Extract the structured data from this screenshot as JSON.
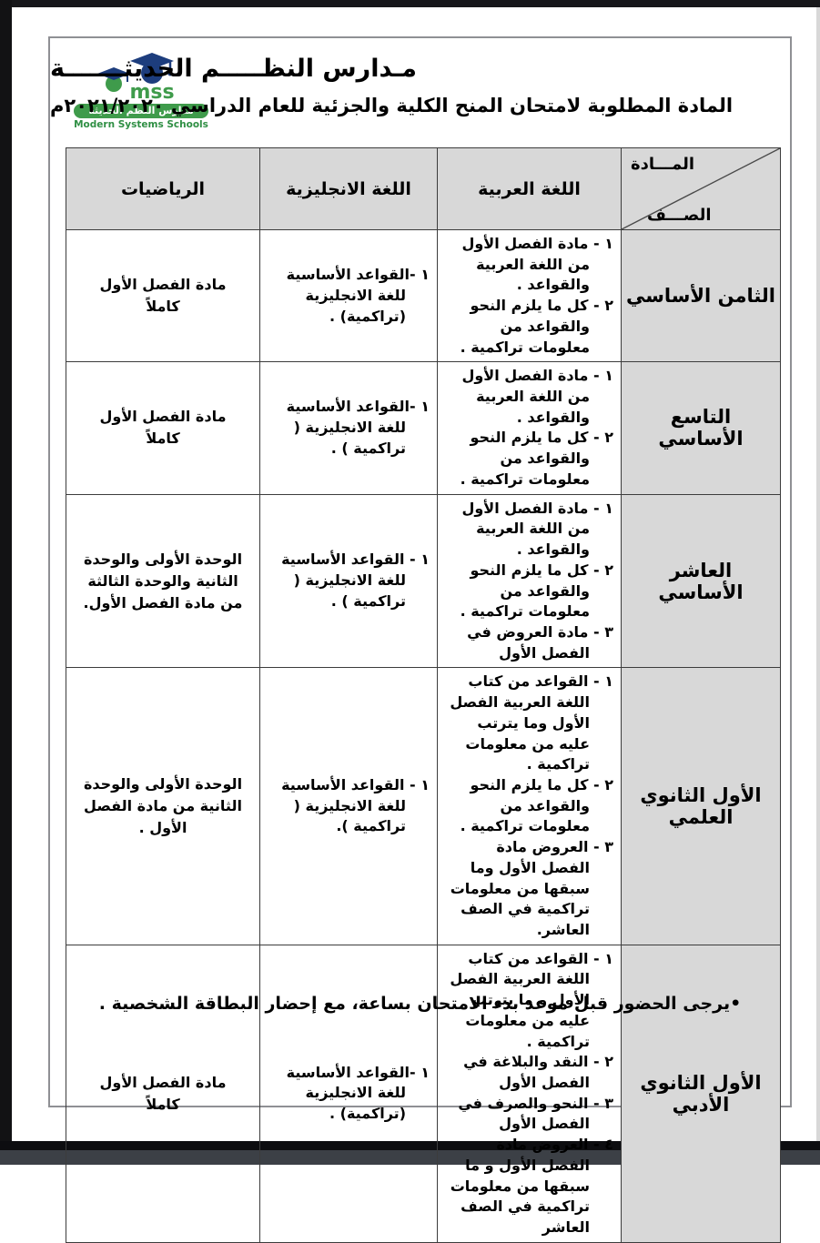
{
  "header": {
    "school_name_ar": "مـدارس النظـــــم الحديثـــــــة",
    "subtitle": "المادة المطلوبة لامتحان المنح الكلية والجزئية للعام الدراسي  ٢٠٢١/٢٠٢٠م",
    "logo": {
      "acronym": "mss",
      "name_ar": "مدارس النظم الحديثة",
      "name_en": "Modern Systems Schools",
      "green": "#3f9b4b",
      "navy": "#1d3d7d"
    }
  },
  "table": {
    "corner": {
      "top_label": "المـــادة",
      "bottom_label": "الصـــف"
    },
    "columns": [
      "اللغة العربية",
      "اللغة الانجليزية",
      "الرياضيات"
    ],
    "rows": [
      {
        "grade": "الثامن الأساسي",
        "arabic": [
          "١ - مادة الفصل الأول من اللغة العربية والقواعد .",
          "٢ - كل ما يلزم النحو والقواعد من معلومات تراكمية ."
        ],
        "english": [
          "١ -القواعد الأساسية للغة الانجليزية (تراكمية) ."
        ],
        "math": "مادة الفصل الأول كاملاً"
      },
      {
        "grade": "التاسع الأساسي",
        "arabic": [
          "١ - مادة الفصل الأول من اللغة العربية والقواعد .",
          "٢ - كل ما يلزم النحو والقواعد من معلومات تراكمية ."
        ],
        "english": [
          "١ -القواعد الأساسية للغة الانجليزية ( تراكمية ) ."
        ],
        "math": "مادة الفصل الأول كاملاً"
      },
      {
        "grade": "العاشر الأساسي",
        "arabic": [
          "١ - مادة الفصل الأول من اللغة العربية والقواعد .",
          "٢ - كل ما يلزم النحو والقواعد من معلومات تراكمية .",
          "٣ - مادة العروض في الفصل الأول"
        ],
        "english": [
          "١ - القواعد الأساسية للغة الانجليزية ( تراكمية ) ."
        ],
        "math": "الوحدة الأولى والوحدة الثانية والوحدة الثالثة من مادة الفصل الأول."
      },
      {
        "grade": "الأول الثانوي العلمي",
        "arabic": [
          "١ - القواعد من كتاب اللغة العربية الفصل الأول وما يترتب عليه من معلومات تراكمية .",
          "٢ - كل ما يلزم النحو والقواعد من معلومات تراكمية .",
          "٣ - العروض مادة الفصل الأول وما سبقها من معلومات تراكمية في الصف العاشر."
        ],
        "english": [
          "١ - القواعد الأساسية للغة الانجليزية ( تراكمية )."
        ],
        "math": "الوحدة الأولى والوحدة الثانية من مادة الفصل الأول ."
      },
      {
        "grade": "الأول الثانوي الأدبي",
        "arabic": [
          "١ - القواعد من كتاب اللغة العربية الفصل الأول و ما يترتب عليه من معلومات تراكمية .",
          "٢ - النقد والبلاغة في الفصل الأول",
          "٣ - النحو والصرف في الفصل الأول",
          "٤ - العروض مادة الفصل الأول و ما سبقها من معلومات تراكمية في الصف العاشر"
        ],
        "english": [
          "١ -القواعد الأساسية للغة الانجليزية (تراكمية) ."
        ],
        "math": "مادة الفصل الأول كاملاً"
      }
    ]
  },
  "footer_note": "•يرجى الحضور قبل موعد بدء الامتحان بساعة، مع إحضار البطاقة الشخصية ."
}
